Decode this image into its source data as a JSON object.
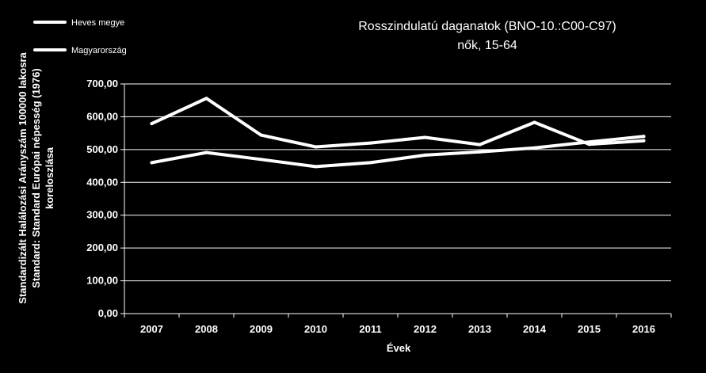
{
  "chart_data": {
    "type": "line",
    "title": "Rosszindulatú daganatok  (BNO-10.:C00-C97)",
    "subtitle": "nők, 15-64",
    "xlabel": "Évek",
    "ylabel_lines": [
      "Standardizált Halálozási Arányszám  100000 lakosra",
      "Standard: Standard Európai népesség (1976)",
      "koreloszlása"
    ],
    "categories": [
      "2007",
      "2008",
      "2009",
      "2010",
      "2011",
      "2012",
      "2013",
      "2014",
      "2015",
      "2016"
    ],
    "ylim": [
      0,
      700
    ],
    "yticks": [
      0,
      100,
      200,
      300,
      400,
      500,
      600,
      700
    ],
    "ytick_labels": [
      "0,00",
      "100,00",
      "200,00",
      "300,00",
      "400,00",
      "500,00",
      "600,00",
      "700,00"
    ],
    "grid": true,
    "legend_position": "top-left",
    "series": [
      {
        "name": "Heves megye",
        "values": [
          579,
          656,
          544,
          508,
          520,
          537,
          515,
          583,
          516,
          527
        ],
        "color": "#ffffff"
      },
      {
        "name": "Magyarország",
        "values": [
          460,
          491,
          470,
          448,
          460,
          483,
          493,
          505,
          523,
          540
        ],
        "color": "#ffffff"
      }
    ],
    "colors": {
      "background": "#000000",
      "line": "#ffffff",
      "grid": "#ffffff"
    }
  }
}
